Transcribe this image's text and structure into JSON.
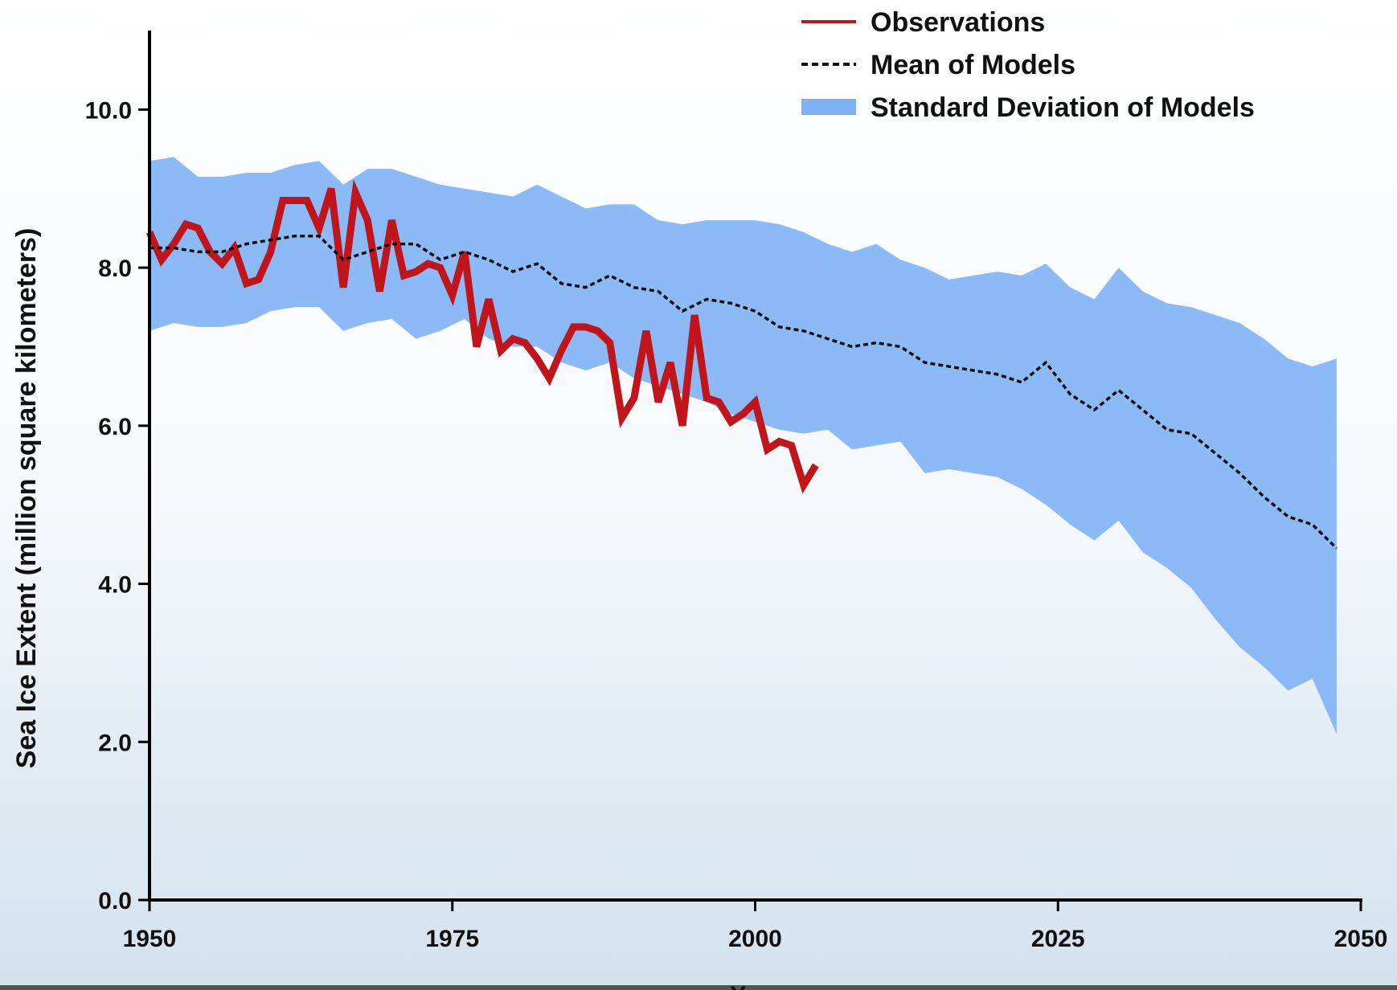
{
  "chart_data": {
    "type": "line",
    "y_label": "Sea Ice Extent (million square kilometers)",
    "x_label": "Year",
    "xlim": [
      1950,
      2050
    ],
    "xticks": [
      1950,
      1975,
      2000,
      2025,
      2050
    ],
    "ylim": [
      0,
      11
    ],
    "yticks": [
      {
        "value": 0,
        "label": "0.0"
      },
      {
        "value": 2,
        "label": "2.0"
      },
      {
        "value": 4,
        "label": "4.0"
      },
      {
        "value": 6,
        "label": "6.0"
      },
      {
        "value": 8,
        "label": "8.0"
      },
      {
        "value": 10,
        "label": "10.0"
      }
    ],
    "legend_position": "upper right",
    "series": [
      {
        "name": "Observations",
        "color": "#c0161b",
        "style": "solid",
        "x": [
          1950,
          1951,
          1952,
          1953,
          1954,
          1955,
          1956,
          1957,
          1958,
          1959,
          1960,
          1961,
          1962,
          1963,
          1964,
          1965,
          1966,
          1967,
          1968,
          1969,
          1970,
          1971,
          1972,
          1973,
          1974,
          1975,
          1976,
          1977,
          1978,
          1979,
          1980,
          1981,
          1982,
          1983,
          1984,
          1985,
          1986,
          1987,
          1988,
          1989,
          1990,
          1991,
          1992,
          1993,
          1994,
          1995,
          1996,
          1997,
          1998,
          1999,
          2000,
          2001,
          2002,
          2003,
          2004,
          2005
        ],
        "values": [
          8.45,
          8.1,
          8.3,
          8.55,
          8.5,
          8.2,
          8.05,
          8.25,
          7.8,
          7.85,
          8.2,
          8.85,
          8.85,
          8.85,
          8.5,
          9.0,
          7.75,
          8.95,
          8.6,
          7.7,
          8.6,
          7.9,
          7.95,
          8.05,
          8.0,
          7.65,
          8.2,
          7.0,
          7.6,
          6.95,
          7.1,
          7.05,
          6.85,
          6.6,
          6.95,
          7.25,
          7.25,
          7.2,
          7.05,
          6.1,
          6.35,
          7.2,
          6.3,
          6.8,
          6.0,
          7.4,
          6.35,
          6.3,
          6.05,
          6.15,
          6.3,
          5.7,
          5.8,
          5.75,
          5.25,
          5.5
        ]
      },
      {
        "name": "Mean of Models",
        "color": "#111111",
        "style": "dotted",
        "x": [
          1950,
          1952,
          1954,
          1956,
          1958,
          1960,
          1962,
          1964,
          1966,
          1968,
          1970,
          1972,
          1974,
          1976,
          1978,
          1980,
          1982,
          1984,
          1986,
          1988,
          1990,
          1992,
          1994,
          1996,
          1998,
          2000,
          2002,
          2004,
          2006,
          2008,
          2010,
          2012,
          2014,
          2016,
          2018,
          2020,
          2022,
          2024,
          2026,
          2028,
          2030,
          2032,
          2034,
          2036,
          2038,
          2040,
          2042,
          2044,
          2046,
          2048
        ],
        "values": [
          8.25,
          8.25,
          8.2,
          8.2,
          8.3,
          8.35,
          8.4,
          8.4,
          8.1,
          8.2,
          8.3,
          8.3,
          8.1,
          8.2,
          8.1,
          7.95,
          8.05,
          7.8,
          7.75,
          7.9,
          7.75,
          7.7,
          7.45,
          7.6,
          7.55,
          7.45,
          7.25,
          7.2,
          7.1,
          7.0,
          7.05,
          7.0,
          6.8,
          6.75,
          6.7,
          6.65,
          6.55,
          6.8,
          6.4,
          6.2,
          6.45,
          6.2,
          5.95,
          5.9,
          5.65,
          5.4,
          5.1,
          4.85,
          4.75,
          4.45
        ]
      },
      {
        "name": "Standard Deviation of Models",
        "color": "#7fb2f5",
        "style": "band",
        "x": [
          1950,
          1952,
          1954,
          1956,
          1958,
          1960,
          1962,
          1964,
          1966,
          1968,
          1970,
          1972,
          1974,
          1976,
          1978,
          1980,
          1982,
          1984,
          1986,
          1988,
          1990,
          1992,
          1994,
          1996,
          1998,
          2000,
          2002,
          2004,
          2006,
          2008,
          2010,
          2012,
          2014,
          2016,
          2018,
          2020,
          2022,
          2024,
          2026,
          2028,
          2030,
          2032,
          2034,
          2036,
          2038,
          2040,
          2042,
          2044,
          2046,
          2048
        ],
        "upper": [
          9.35,
          9.4,
          9.15,
          9.15,
          9.2,
          9.2,
          9.3,
          9.35,
          9.05,
          9.25,
          9.25,
          9.15,
          9.05,
          9.0,
          8.95,
          8.9,
          9.05,
          8.9,
          8.75,
          8.8,
          8.8,
          8.6,
          8.55,
          8.6,
          8.6,
          8.6,
          8.55,
          8.45,
          8.3,
          8.2,
          8.3,
          8.1,
          8.0,
          7.85,
          7.9,
          7.95,
          7.9,
          8.05,
          7.75,
          7.6,
          8.0,
          7.7,
          7.55,
          7.5,
          7.4,
          7.3,
          7.1,
          6.85,
          6.75,
          6.85
        ],
        "lower": [
          7.2,
          7.3,
          7.25,
          7.25,
          7.3,
          7.45,
          7.5,
          7.5,
          7.2,
          7.3,
          7.35,
          7.1,
          7.2,
          7.35,
          7.1,
          7.0,
          7.0,
          6.8,
          6.7,
          6.8,
          6.6,
          6.5,
          6.4,
          6.3,
          6.15,
          6.05,
          5.95,
          5.9,
          5.95,
          5.7,
          5.75,
          5.8,
          5.4,
          5.45,
          5.4,
          5.35,
          5.2,
          5.0,
          4.75,
          4.55,
          4.8,
          4.4,
          4.2,
          3.95,
          3.55,
          3.2,
          2.95,
          2.65,
          2.8,
          2.1
        ]
      }
    ]
  }
}
